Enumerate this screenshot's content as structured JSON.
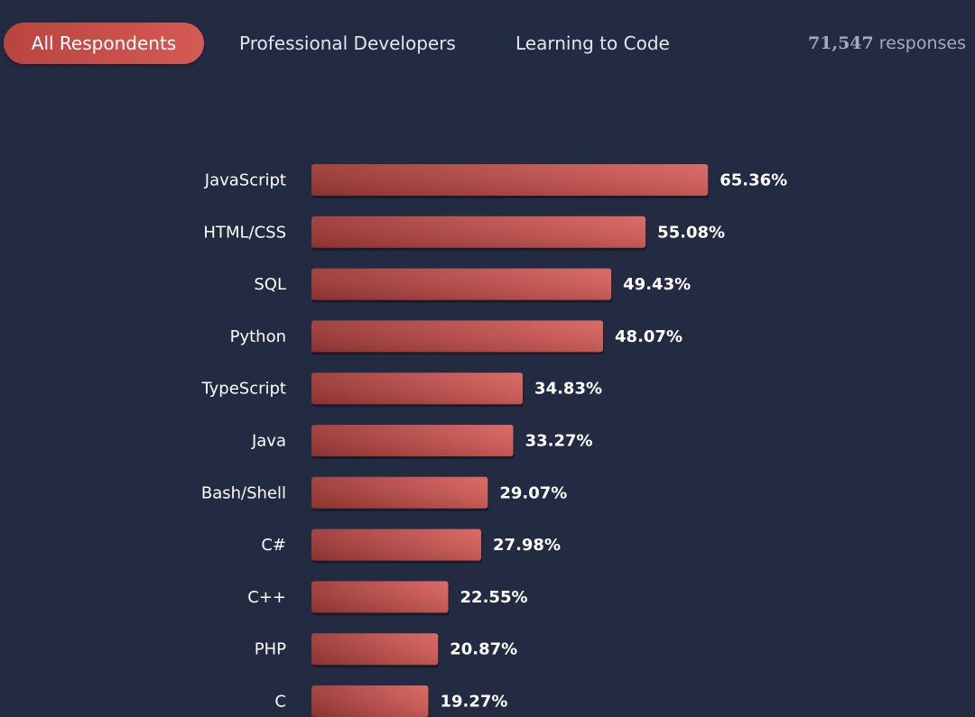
{
  "tabs": [
    {
      "label": "All Respondents",
      "active": true
    },
    {
      "label": "Professional Developers",
      "active": false
    },
    {
      "label": "Learning to Code",
      "active": false
    }
  ],
  "responses": {
    "count": "71,547",
    "label": "responses"
  },
  "colors": {
    "background": "#232b42",
    "bar_start": "#9c3836",
    "bar_end": "#d8615c",
    "accent": "#c9504b"
  },
  "chart_data": {
    "type": "bar",
    "orientation": "horizontal",
    "categories": [
      "JavaScript",
      "HTML/CSS",
      "SQL",
      "Python",
      "TypeScript",
      "Java",
      "Bash/Shell",
      "C#",
      "C++",
      "PHP",
      "C"
    ],
    "values": [
      65.36,
      55.08,
      49.43,
      48.07,
      34.83,
      33.27,
      29.07,
      27.98,
      22.55,
      20.87,
      19.27
    ],
    "value_labels": [
      "65.36%",
      "55.08%",
      "49.43%",
      "48.07%",
      "34.83%",
      "33.27%",
      "29.07%",
      "27.98%",
      "22.55%",
      "20.87%",
      "19.27%"
    ],
    "unit": "%",
    "xlim": [
      0,
      100
    ],
    "grid": false,
    "title": "",
    "xlabel": "",
    "ylabel": ""
  }
}
